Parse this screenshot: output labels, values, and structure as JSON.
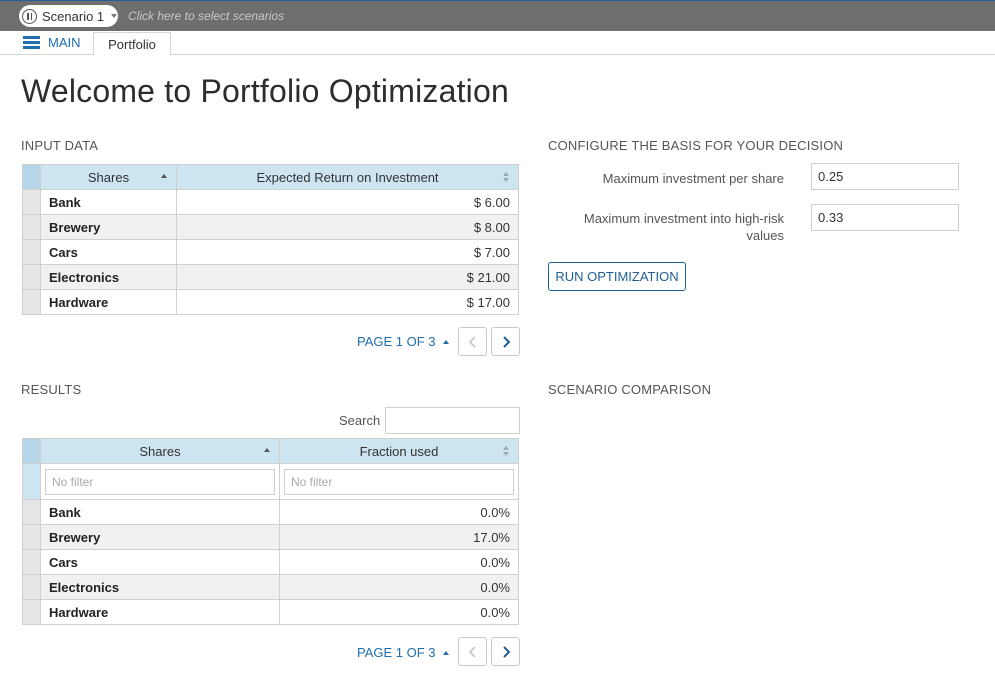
{
  "topbar": {
    "scenario_name": "Scenario 1",
    "scenario_hint": "Click here to select scenarios"
  },
  "tabs": {
    "main_label": "MAIN",
    "portfolio_label": "Portfolio"
  },
  "page_title": "Welcome to Portfolio Optimization",
  "input_data": {
    "title": "INPUT DATA",
    "columns": [
      "Shares",
      "Expected Return on Investment"
    ],
    "rows": [
      {
        "share": "Bank",
        "return": "$ 6.00"
      },
      {
        "share": "Brewery",
        "return": "$ 8.00"
      },
      {
        "share": "Cars",
        "return": "$ 7.00"
      },
      {
        "share": "Electronics",
        "return": "$ 21.00"
      },
      {
        "share": "Hardware",
        "return": "$ 17.00"
      }
    ],
    "pager_label": "PAGE 1 OF 3"
  },
  "config": {
    "title": "CONFIGURE THE BASIS FOR YOUR DECISION",
    "max_per_share_label": "Maximum investment per share",
    "max_per_share_value": "0.25",
    "max_high_risk_label": "Maximum investment into high-risk values",
    "max_high_risk_value": "0.33",
    "run_button": "RUN OPTIMIZATION"
  },
  "results": {
    "title": "RESULTS",
    "search_label": "Search",
    "columns": [
      "Shares",
      "Fraction used"
    ],
    "filter_placeholder": "No filter",
    "rows": [
      {
        "share": "Bank",
        "fraction": "0.0%"
      },
      {
        "share": "Brewery",
        "fraction": "17.0%"
      },
      {
        "share": "Cars",
        "fraction": "0.0%"
      },
      {
        "share": "Electronics",
        "fraction": "0.0%"
      },
      {
        "share": "Hardware",
        "fraction": "0.0%"
      }
    ],
    "pager_label": "PAGE 1 OF 3"
  },
  "comparison": {
    "title": "SCENARIO COMPARISON"
  },
  "colors": {
    "accent": "#1f6eb0",
    "header_bg": "#cde4f1",
    "topbar_bg": "#6e6e6e"
  }
}
